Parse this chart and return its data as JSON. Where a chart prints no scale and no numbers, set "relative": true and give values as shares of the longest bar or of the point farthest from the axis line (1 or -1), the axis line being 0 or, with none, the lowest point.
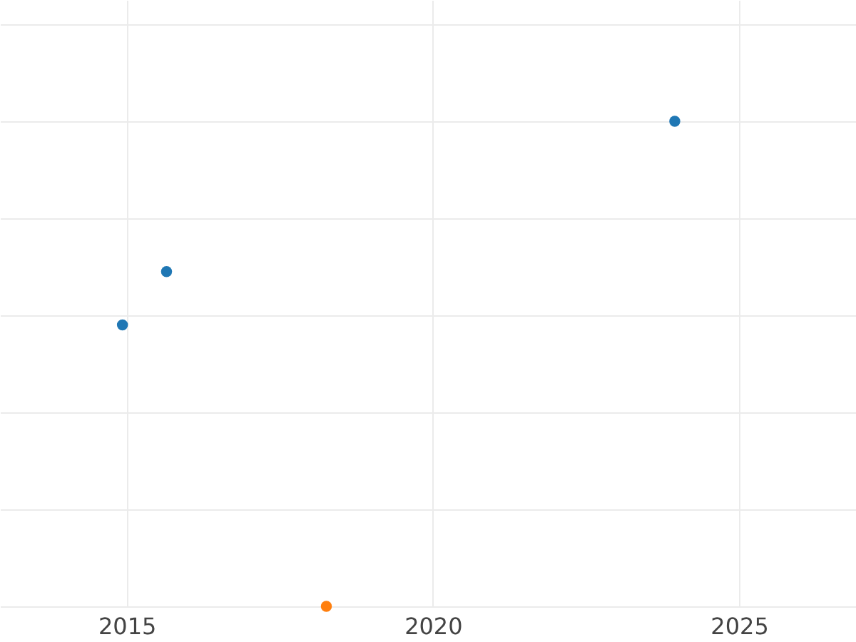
{
  "chart_data": {
    "type": "scatter",
    "relative": true,
    "grid": true,
    "marker": "circle",
    "xlim": [
      2012.93,
      2026.91
    ],
    "xticks": [
      2015,
      2020,
      2025
    ],
    "series": [
      {
        "color": "#1f77b4",
        "x": [
          2014.93,
          2015.65,
          2023.95
        ],
        "values": [
          0.58,
          0.69,
          1
        ]
      },
      {
        "color": "#ff7f0e",
        "x": [
          2018.26
        ],
        "values": [
          0
        ]
      }
    ]
  }
}
